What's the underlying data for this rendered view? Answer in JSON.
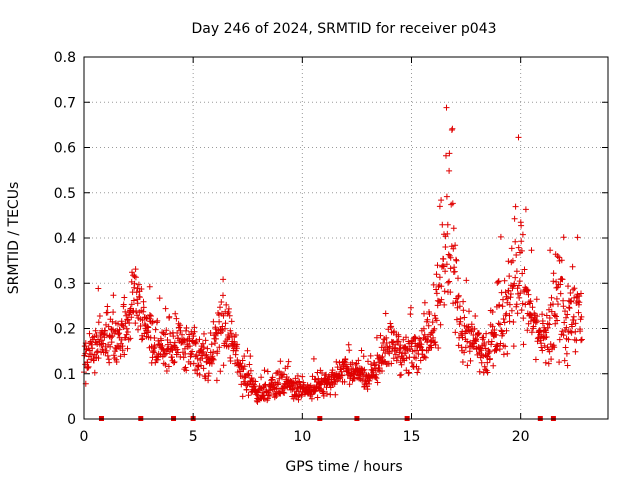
{
  "chart_data": {
    "type": "scatter",
    "title": "Day 246 of 2024, SRMTID for receiver p043",
    "xlabel": "GPS time / hours",
    "ylabel": "SRMTID / TECUs",
    "xlim": [
      0,
      24
    ],
    "ylim": [
      0,
      0.8
    ],
    "xticks": [
      0,
      5,
      10,
      15,
      20
    ],
    "yticks": [
      0,
      0.1,
      0.2,
      0.3,
      0.4,
      0.5,
      0.6,
      0.7,
      0.8
    ],
    "xtick_labels": [
      "0",
      "5",
      "10",
      "15",
      "20"
    ],
    "ytick_labels": [
      "0",
      "0.1",
      "0.2",
      "0.3",
      "0.4",
      "0.5",
      "0.6",
      "0.7",
      "0.8"
    ],
    "grid": true,
    "marker": "+",
    "color": "#e00000",
    "baseline_markers_x": [
      0.8,
      2.6,
      4.1,
      5.0,
      10.8,
      12.5,
      14.8,
      20.9,
      21.5
    ],
    "envelope": {
      "x": [
        0.0,
        0.5,
        1.0,
        1.5,
        2.0,
        2.3,
        2.7,
        3.2,
        3.7,
        4.2,
        4.8,
        5.3,
        5.8,
        6.3,
        6.8,
        7.2,
        7.6,
        8.0,
        8.5,
        9.0,
        9.5,
        10.0,
        10.5,
        11.0,
        11.5,
        12.0,
        12.5,
        13.0,
        13.5,
        14.0,
        14.5,
        15.0,
        15.5,
        16.0,
        16.3,
        16.6,
        16.9,
        17.2,
        17.6,
        18.0,
        18.5,
        19.0,
        19.4,
        19.7,
        20.0,
        20.3,
        20.7,
        21.1,
        21.5,
        21.8,
        22.1,
        22.4,
        22.7
      ],
      "center": [
        0.12,
        0.16,
        0.18,
        0.17,
        0.2,
        0.28,
        0.22,
        0.16,
        0.15,
        0.17,
        0.16,
        0.13,
        0.15,
        0.2,
        0.18,
        0.1,
        0.08,
        0.05,
        0.07,
        0.08,
        0.07,
        0.06,
        0.07,
        0.08,
        0.09,
        0.11,
        0.1,
        0.09,
        0.12,
        0.16,
        0.15,
        0.15,
        0.17,
        0.18,
        0.3,
        0.4,
        0.35,
        0.22,
        0.18,
        0.16,
        0.15,
        0.2,
        0.25,
        0.3,
        0.35,
        0.25,
        0.2,
        0.17,
        0.22,
        0.28,
        0.2,
        0.25,
        0.22
      ],
      "spread": [
        0.06,
        0.1,
        0.08,
        0.08,
        0.08,
        0.1,
        0.1,
        0.08,
        0.07,
        0.08,
        0.08,
        0.06,
        0.08,
        0.12,
        0.08,
        0.05,
        0.05,
        0.03,
        0.04,
        0.04,
        0.04,
        0.03,
        0.04,
        0.04,
        0.04,
        0.05,
        0.04,
        0.04,
        0.05,
        0.07,
        0.08,
        0.07,
        0.07,
        0.09,
        0.2,
        0.25,
        0.2,
        0.1,
        0.08,
        0.07,
        0.07,
        0.12,
        0.15,
        0.2,
        0.3,
        0.1,
        0.08,
        0.07,
        0.15,
        0.2,
        0.1,
        0.25,
        0.1
      ]
    },
    "x_start": 0.0,
    "x_end": 22.8,
    "n_points": 1500
  }
}
